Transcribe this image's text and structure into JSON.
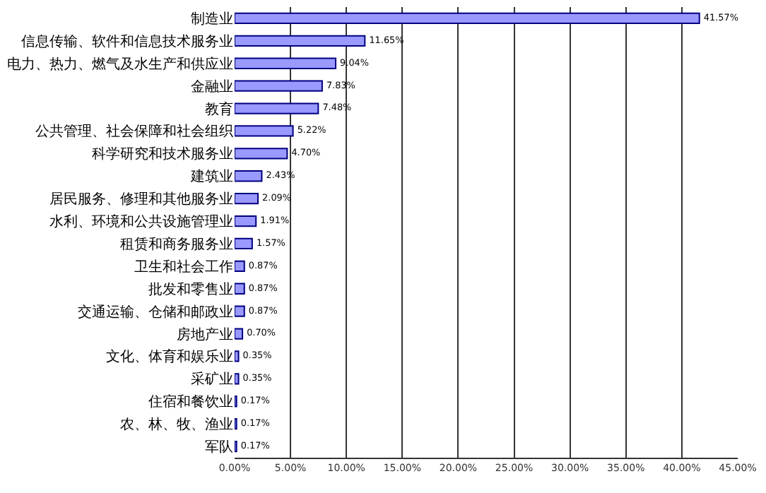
{
  "chart_data": {
    "type": "bar",
    "orientation": "horizontal",
    "categories": [
      "制造业",
      "信息传输、软件和信息技术服务业",
      "电力、热力、燃气及水生产和供应业",
      "金融业",
      "教育",
      "公共管理、社会保障和社会组织",
      "科学研究和技术服务业",
      "建筑业",
      "居民服务、修理和其他服务业",
      "水利、环境和公共设施管理业",
      "租赁和商务服务业",
      "卫生和社会工作",
      "批发和零售业",
      "交通运输、仓储和邮政业",
      "房地产业",
      "文化、体育和娱乐业",
      "采矿业",
      "住宿和餐饮业",
      "农、林、牧、渔业",
      "军队"
    ],
    "values": [
      41.57,
      11.65,
      9.04,
      7.83,
      7.48,
      5.22,
      4.7,
      2.43,
      2.09,
      1.91,
      1.57,
      0.87,
      0.87,
      0.87,
      0.7,
      0.35,
      0.35,
      0.17,
      0.17,
      0.17
    ],
    "value_labels": [
      "41.57%",
      "11.65%",
      "9.04%",
      "7.83%",
      "7.48%",
      "5.22%",
      "4.70%",
      "2.43%",
      "2.09%",
      "1.91%",
      "1.57%",
      "0.87%",
      "0.87%",
      "0.87%",
      "0.70%",
      "0.35%",
      "0.35%",
      "0.17%",
      "0.17%",
      "0.17%"
    ],
    "color": "#9999ff",
    "xlim": [
      0,
      45
    ],
    "xticks": [
      {
        "value": 0,
        "label": "0.00%"
      },
      {
        "value": 5,
        "label": "5.00%"
      },
      {
        "value": 10,
        "label": "10.00%"
      },
      {
        "value": 15,
        "label": "15.00%"
      },
      {
        "value": 20,
        "label": "20.00%"
      },
      {
        "value": 25,
        "label": "25.00%"
      },
      {
        "value": 30,
        "label": "30.00%"
      },
      {
        "value": 35,
        "label": "35.00%"
      },
      {
        "value": 40,
        "label": "40.00%"
      },
      {
        "value": 45,
        "label": "45.00%"
      }
    ],
    "grid": "x",
    "legend": false
  }
}
